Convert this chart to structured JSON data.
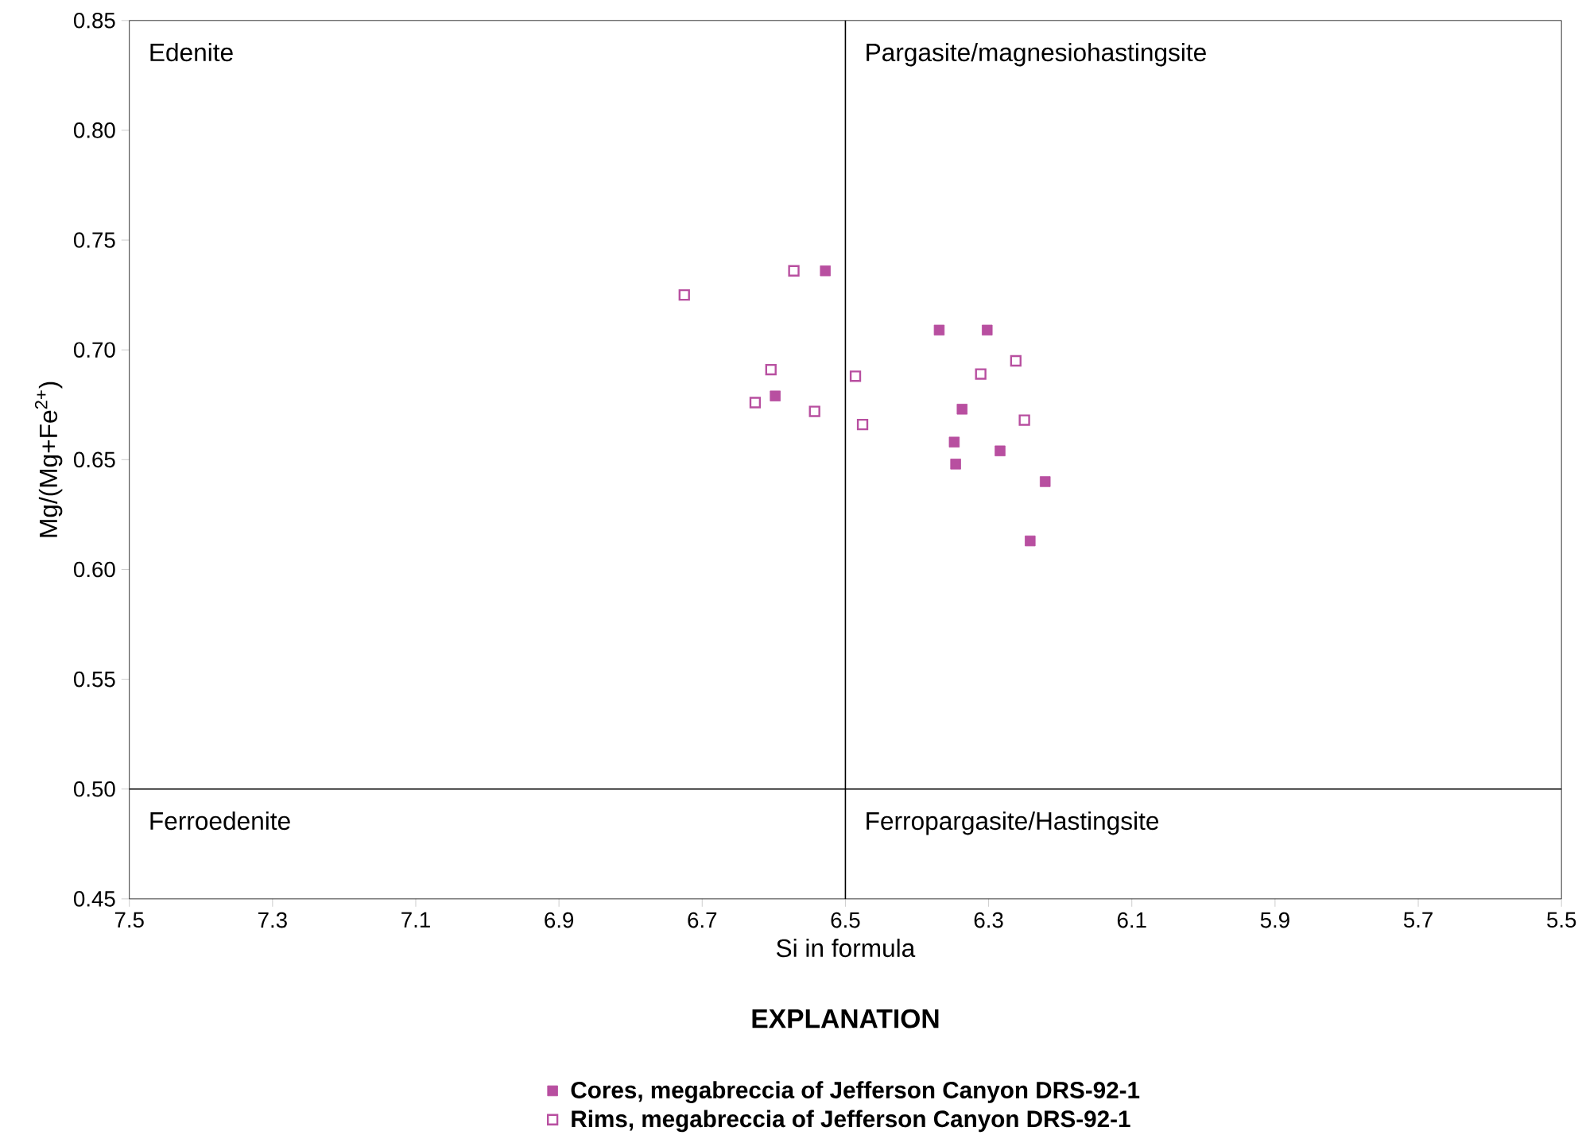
{
  "chart_data": {
    "type": "scatter",
    "xlabel": "Si in formula",
    "ylabel": "Mg/(Mg+Fe$^{2+}$)",
    "legend_title": "EXPLANATION",
    "legend": "bottom",
    "marker": "square",
    "xlim": [
      7.5,
      5.5
    ],
    "xticks": [
      7.5,
      7.3,
      7.1,
      6.9,
      6.7,
      6.5,
      6.3,
      6.1,
      5.9,
      5.7,
      5.5
    ],
    "ylim": [
      0.45,
      0.85
    ],
    "yticks": [
      0.45,
      {
        "value": 0.5,
        "label": "0.50"
      },
      0.55,
      {
        "value": 0.6,
        "label": "0.60"
      },
      0.65,
      {
        "value": 0.7,
        "label": "0.70"
      },
      0.75,
      {
        "value": 0.8,
        "label": "0.80"
      },
      0.85
    ],
    "ref_lines": [
      {
        "axis": "x",
        "value": 6.5,
        "color": "#000000"
      },
      {
        "axis": "y",
        "value": 0.5,
        "color": "#000000"
      }
    ],
    "annotations": [
      "Edenite",
      "Pargasite/magnesiohastingsite",
      "Ferroedenite",
      "Ferropargasite/Hastingsite"
    ],
    "series": [
      {
        "name": "Cores, megabreccia of Jefferson Canyon DRS-92-1",
        "color": "#b84fa0",
        "x": [
          6.528,
          6.369,
          6.302,
          6.598,
          6.337,
          6.348,
          6.346,
          6.284,
          6.221,
          6.242
        ],
        "values": [
          0.736,
          0.709,
          0.709,
          0.679,
          0.673,
          0.658,
          0.648,
          0.654,
          0.64,
          0.613
        ]
      },
      {
        "name": "Rims, megabreccia of Jefferson Canyon DRS-92-1",
        "color": "#b84fa0",
        "x": [
          6.725,
          6.572,
          6.604,
          6.626,
          6.543,
          6.486,
          6.476,
          6.311,
          6.262,
          6.25
        ],
        "values": [
          0.725,
          0.736,
          0.691,
          0.676,
          0.672,
          0.688,
          0.666,
          0.689,
          0.695,
          0.668
        ]
      }
    ]
  }
}
